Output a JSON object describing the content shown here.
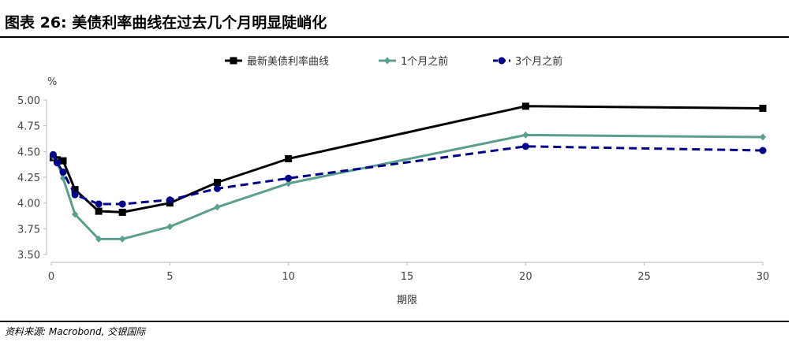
{
  "title": "图表 26: 美债利率曲线在过去几个月明显陡峭化",
  "source": "资料来源: Macrobond, 交银国际",
  "chart_data": {
    "type": "line",
    "xlabel": "期限",
    "ylabel": "%",
    "xlim": [
      0,
      30
    ],
    "ylim": [
      3.5,
      5.0
    ],
    "xticks": [
      "0",
      "5",
      "10",
      "15",
      "20",
      "25",
      "30"
    ],
    "yticks": [
      "3.50",
      "3.75",
      "4.00",
      "4.25",
      "4.50",
      "4.75",
      "5.00"
    ],
    "grid": false,
    "legend_position": "top-center",
    "series": [
      {
        "name": "最新美债利率曲线",
        "color": "#000000",
        "marker": "square",
        "dash": "solid",
        "x": [
          0.08,
          0.25,
          0.5,
          1,
          2,
          3,
          5,
          7,
          10,
          20,
          30
        ],
        "y": [
          4.44,
          4.42,
          4.41,
          4.13,
          3.92,
          3.91,
          4.0,
          4.2,
          4.43,
          4.94,
          4.92
        ]
      },
      {
        "name": "1个月之前",
        "color": "#5a9e8e",
        "marker": "diamond",
        "dash": "solid",
        "x": [
          0.08,
          0.25,
          0.5,
          1,
          2,
          3,
          5,
          7,
          10,
          20,
          30
        ],
        "y": [
          4.45,
          4.4,
          4.24,
          3.89,
          3.65,
          3.65,
          3.77,
          3.96,
          4.19,
          4.66,
          4.64
        ]
      },
      {
        "name": "3个月之前",
        "color": "#00008b",
        "marker": "circle",
        "dash": "dashed",
        "x": [
          0.08,
          0.25,
          0.5,
          1,
          2,
          3,
          5,
          7,
          10,
          20,
          30
        ],
        "y": [
          4.47,
          4.39,
          4.3,
          4.08,
          3.99,
          3.99,
          4.03,
          4.14,
          4.24,
          4.55,
          4.51
        ]
      }
    ]
  }
}
